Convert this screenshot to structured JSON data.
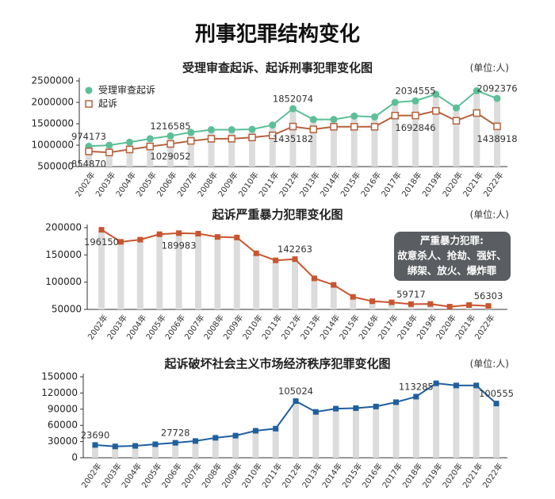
{
  "title": "刑事犯罪结构变化",
  "chart_data": [
    {
      "type": "line",
      "title": "受理审查起诉、起诉刑事犯罪变化图",
      "unit": "(单位:人)",
      "categories": [
        "2002年",
        "2003年",
        "2004年",
        "2005年",
        "2006年",
        "2007年",
        "2008年",
        "2009年",
        "2010年",
        "2011年",
        "2012年",
        "2013年",
        "2014年",
        "2015年",
        "2016年",
        "2017年",
        "2018年",
        "2019年",
        "2020年",
        "2021年",
        "2022年"
      ],
      "series": [
        {
          "name": "受理审查起诉",
          "color": "#5cbf98",
          "marker": "circle",
          "values": [
            974173,
            1000000,
            1070000,
            1150000,
            1216585,
            1300000,
            1360000,
            1360000,
            1370000,
            1470000,
            1852074,
            1600000,
            1600000,
            1680000,
            1660000,
            2000000,
            2034555,
            2190000,
            1870000,
            2270000,
            2092376
          ],
          "value_labels": [
            "974173",
            null,
            null,
            null,
            "1216585",
            null,
            null,
            null,
            null,
            null,
            "1852074",
            null,
            null,
            null,
            null,
            null,
            "2034555",
            null,
            null,
            null,
            "2092376"
          ]
        },
        {
          "name": "起诉",
          "color": "#b5623d",
          "marker": "square-hollow",
          "values": [
            854870,
            830000,
            900000,
            970000,
            1029052,
            1100000,
            1150000,
            1150000,
            1180000,
            1230000,
            1435182,
            1370000,
            1430000,
            1430000,
            1430000,
            1690000,
            1692846,
            1800000,
            1570000,
            1750000,
            1438918
          ],
          "value_labels": [
            "854870",
            null,
            null,
            null,
            "1029052",
            null,
            null,
            null,
            null,
            null,
            "1435182",
            null,
            null,
            null,
            null,
            null,
            "1692846",
            null,
            null,
            null,
            "1438918"
          ]
        }
      ],
      "ylim": [
        500000,
        2500000
      ],
      "yticks": [
        500000,
        1000000,
        1500000,
        2000000,
        2500000
      ],
      "legend": "top-left"
    },
    {
      "type": "line",
      "title": "起诉严重暴力犯罪变化图",
      "unit": "(单位:人)",
      "categories": [
        "2002年",
        "2003年",
        "2004年",
        "2005年",
        "2006年",
        "2007年",
        "2008年",
        "2009年",
        "2010年",
        "2011年",
        "2012年",
        "2013年",
        "2014年",
        "2015年",
        "2016年",
        "2017年",
        "2018年",
        "2019年",
        "2020年",
        "2021年",
        "2022年"
      ],
      "series": [
        {
          "color": "#c8552e",
          "marker": "square",
          "values": [
            196150,
            174000,
            178000,
            188000,
            189983,
            189000,
            183000,
            182000,
            153000,
            140000,
            142263,
            107000,
            95000,
            73000,
            65000,
            63000,
            59717,
            60000,
            55000,
            58000,
            56303
          ],
          "value_labels": [
            "196150",
            null,
            null,
            null,
            "189983",
            null,
            null,
            null,
            null,
            null,
            "142263",
            null,
            null,
            null,
            null,
            null,
            "59717",
            null,
            null,
            null,
            "56303"
          ]
        }
      ],
      "ylim": [
        50000,
        200000
      ],
      "yticks": [
        50000,
        100000,
        150000,
        200000
      ],
      "annotation": [
        "严重暴力犯罪:",
        "故意杀人、抢劫、强奸、",
        "绑架、放火、爆炸罪"
      ]
    },
    {
      "type": "line",
      "title": "起诉破坏社会主义市场经济秩序犯罪变化图",
      "unit": "(单位:人)",
      "categories": [
        "2002年",
        "2003年",
        "2004年",
        "2005年",
        "2006年",
        "2007年",
        "2008年",
        "2009年",
        "2010年",
        "2011年",
        "2012年",
        "2013年",
        "2014年",
        "2015年",
        "2016年",
        "2017年",
        "2018年",
        "2019年",
        "2020年",
        "2021年",
        "2022年"
      ],
      "series": [
        {
          "color": "#1f5f9e",
          "marker": "square",
          "values": [
            23690,
            21000,
            22000,
            25000,
            27728,
            31000,
            37000,
            41000,
            50000,
            54000,
            105024,
            85000,
            91000,
            92000,
            95000,
            103000,
            113285,
            138000,
            134000,
            134000,
            100555
          ],
          "value_labels": [
            "23690",
            null,
            null,
            null,
            "27728",
            null,
            null,
            null,
            null,
            null,
            "105024",
            null,
            null,
            null,
            null,
            null,
            "113285",
            null,
            null,
            null,
            "100555"
          ]
        }
      ],
      "ylim": [
        0,
        150000
      ],
      "yticks": [
        0,
        30000,
        60000,
        90000,
        120000,
        150000
      ]
    }
  ]
}
